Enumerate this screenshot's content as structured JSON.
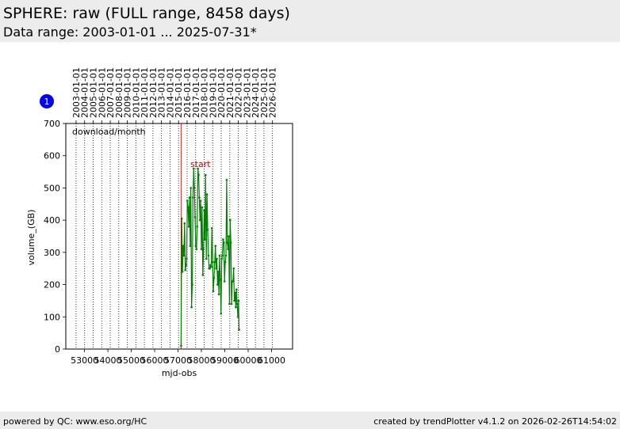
{
  "header": {
    "title": "SPHERE: raw (FULL range, 8458 days)",
    "subtitle": "Data range: 2003-01-01 ... 2025-07-31*"
  },
  "footer": {
    "left": "powered by QC: www.eso.org/HC",
    "right": "created by trendPlotter v4.1.2 on 2026-02-26T14:54:02"
  },
  "badge": {
    "label": "1",
    "color": "#0000ee"
  },
  "chart_data": {
    "type": "line",
    "xlabel": "mjd-obs",
    "ylabel": "volume_(GB)",
    "annotation": "download/month",
    "xlim": [
      52200,
      61900
    ],
    "ylim": [
      0,
      700
    ],
    "yticks": [
      0,
      100,
      200,
      300,
      400,
      500,
      600,
      700
    ],
    "xticks": [
      53000,
      54000,
      55000,
      56000,
      57000,
      58000,
      59000,
      60000,
      61000
    ],
    "xtick_labels": [
      "53000",
      "54000",
      "55000",
      "56000",
      "57000",
      "58000",
      "59000",
      "60000",
      "61000"
    ],
    "top_axis": {
      "dates": [
        "2003-01-01",
        "2004-01-01",
        "2005-01-01",
        "2006-01-01",
        "2007-01-01",
        "2008-01-01",
        "2009-01-01",
        "2010-01-01",
        "2011-01-01",
        "2012-01-01",
        "2013-01-01",
        "2014-01-01",
        "2015-01-01",
        "2016-01-01",
        "2017-01-01",
        "2018-01-01",
        "2019-01-01",
        "2020-01-01",
        "2021-01-01",
        "2022-01-01",
        "2023-01-01",
        "2024-01-01",
        "2025-01-01",
        "2026-01-01"
      ],
      "mjd": [
        52640,
        53005,
        53371,
        53736,
        54101,
        54466,
        54832,
        55197,
        55562,
        55927,
        56293,
        56658,
        57023,
        57388,
        57754,
        58119,
        58484,
        58849,
        59215,
        59580,
        59945,
        60310,
        60676,
        61041
      ]
    },
    "marker": {
      "label": "start",
      "x": 57130,
      "color": "#cc0000"
    },
    "series": [
      {
        "color": "#008000",
        "points": [
          [
            57130,
            10
          ],
          [
            57160,
            405
          ],
          [
            57190,
            240
          ],
          [
            57220,
            320
          ],
          [
            57250,
            290
          ],
          [
            57280,
            390
          ],
          [
            57310,
            245
          ],
          [
            57340,
            260
          ],
          [
            57370,
            280
          ],
          [
            57400,
            460
          ],
          [
            57430,
            440
          ],
          [
            57460,
            380
          ],
          [
            57490,
            470
          ],
          [
            57520,
            320
          ],
          [
            57550,
            500
          ],
          [
            57580,
            130
          ],
          [
            57610,
            200
          ],
          [
            57640,
            470
          ],
          [
            57670,
            560
          ],
          [
            57700,
            500
          ],
          [
            57730,
            410
          ],
          [
            57760,
            320
          ],
          [
            57790,
            310
          ],
          [
            57820,
            380
          ],
          [
            57850,
            560
          ],
          [
            57880,
            540
          ],
          [
            57910,
            470
          ],
          [
            57940,
            400
          ],
          [
            57970,
            460
          ],
          [
            58000,
            310
          ],
          [
            58030,
            440
          ],
          [
            58060,
            230
          ],
          [
            58090,
            310
          ],
          [
            58120,
            430
          ],
          [
            58150,
            340
          ],
          [
            58180,
            540
          ],
          [
            58210,
            280
          ],
          [
            58240,
            480
          ],
          [
            58270,
            370
          ],
          [
            58300,
            290
          ],
          [
            58330,
            250
          ],
          [
            58360,
            250
          ],
          [
            58390,
            260
          ],
          [
            58420,
            255
          ],
          [
            58450,
            375
          ],
          [
            58480,
            270
          ],
          [
            58510,
            180
          ],
          [
            58540,
            220
          ],
          [
            58570,
            270
          ],
          [
            58600,
            320
          ],
          [
            58630,
            250
          ],
          [
            58660,
            280
          ],
          [
            58690,
            200
          ],
          [
            58720,
            240
          ],
          [
            58750,
            170
          ],
          [
            58780,
            290
          ],
          [
            58810,
            215
          ],
          [
            58840,
            110
          ],
          [
            58870,
            280
          ],
          [
            58900,
            290
          ],
          [
            58930,
            340
          ],
          [
            58960,
            330
          ],
          [
            58990,
            210
          ],
          [
            59020,
            270
          ],
          [
            59050,
            290
          ],
          [
            59080,
            525
          ],
          [
            59110,
            330
          ],
          [
            59140,
            310
          ],
          [
            59170,
            350
          ],
          [
            59200,
            140
          ],
          [
            59230,
            400
          ],
          [
            59260,
            330
          ],
          [
            59290,
            140
          ],
          [
            59320,
            210
          ],
          [
            59350,
            210
          ],
          [
            59380,
            250
          ],
          [
            59410,
            150
          ],
          [
            59440,
            175
          ],
          [
            59470,
            130
          ],
          [
            59500,
            185
          ],
          [
            59530,
            140
          ],
          [
            59560,
            100
          ],
          [
            59590,
            150
          ],
          [
            59610,
            60
          ]
        ]
      }
    ]
  }
}
